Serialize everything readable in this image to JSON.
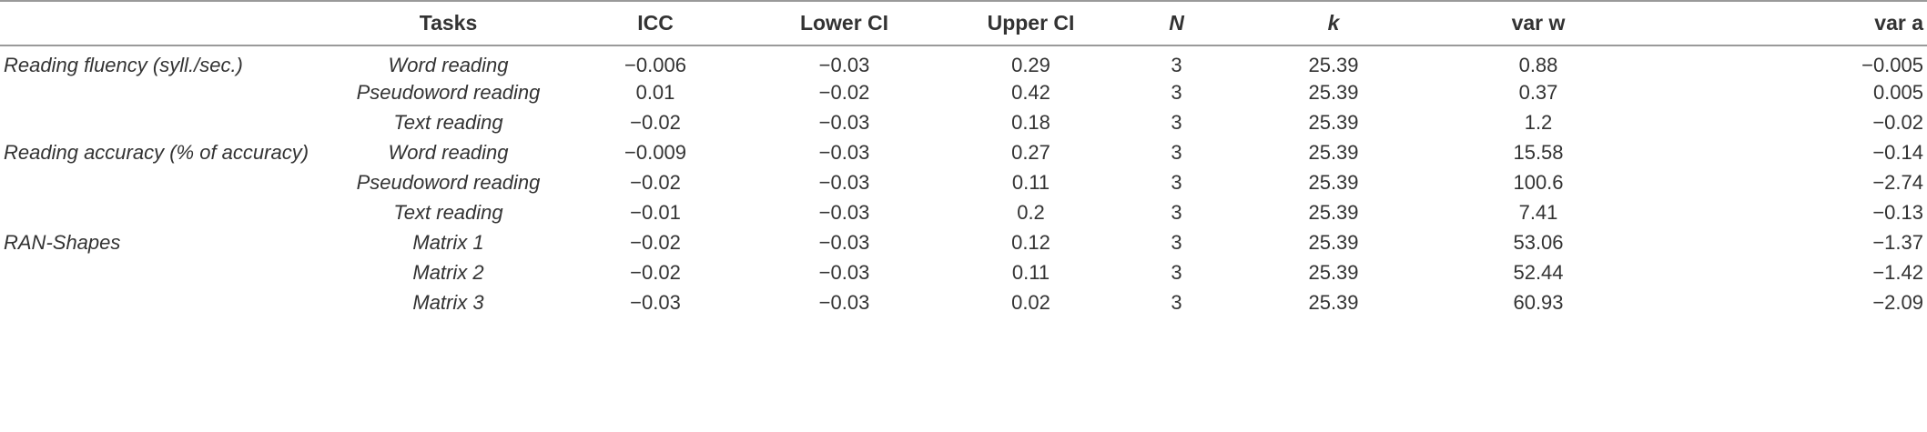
{
  "table": {
    "headers": [
      "",
      "Tasks",
      "ICC",
      "Lower CI",
      "Upper CI",
      "N",
      "k",
      "var w",
      "var a"
    ],
    "rows": [
      [
        "Reading fluency (syll./sec.)",
        "Word reading",
        "−0.006",
        "−0.03",
        "0.29",
        "3",
        "25.39",
        "0.88",
        "−0.005"
      ],
      [
        "",
        "Pseudoword reading",
        "0.01",
        "−0.02",
        "0.42",
        "3",
        "25.39",
        "0.37",
        "0.005"
      ],
      [
        "",
        "Text reading",
        "−0.02",
        "−0.03",
        "0.18",
        "3",
        "25.39",
        "1.2",
        "−0.02"
      ],
      [
        "Reading accuracy (% of accuracy)",
        "Word reading",
        "−0.009",
        "−0.03",
        "0.27",
        "3",
        "25.39",
        "15.58",
        "−0.14"
      ],
      [
        "",
        "Pseudoword reading",
        "−0.02",
        "−0.03",
        "0.11",
        "3",
        "25.39",
        "100.6",
        "−2.74"
      ],
      [
        "",
        "Text reading",
        "−0.01",
        "−0.03",
        "0.2",
        "3",
        "25.39",
        "7.41",
        "−0.13"
      ],
      [
        "RAN-Shapes",
        "Matrix 1",
        "−0.02",
        "−0.03",
        "0.12",
        "3",
        "25.39",
        "53.06",
        "−1.37"
      ],
      [
        "",
        "Matrix 2",
        "−0.02",
        "−0.03",
        "0.11",
        "3",
        "25.39",
        "52.44",
        "−1.42"
      ],
      [
        "",
        "Matrix 3",
        "−0.03",
        "−0.03",
        "0.02",
        "3",
        "25.39",
        "60.93",
        "−2.09"
      ]
    ]
  }
}
